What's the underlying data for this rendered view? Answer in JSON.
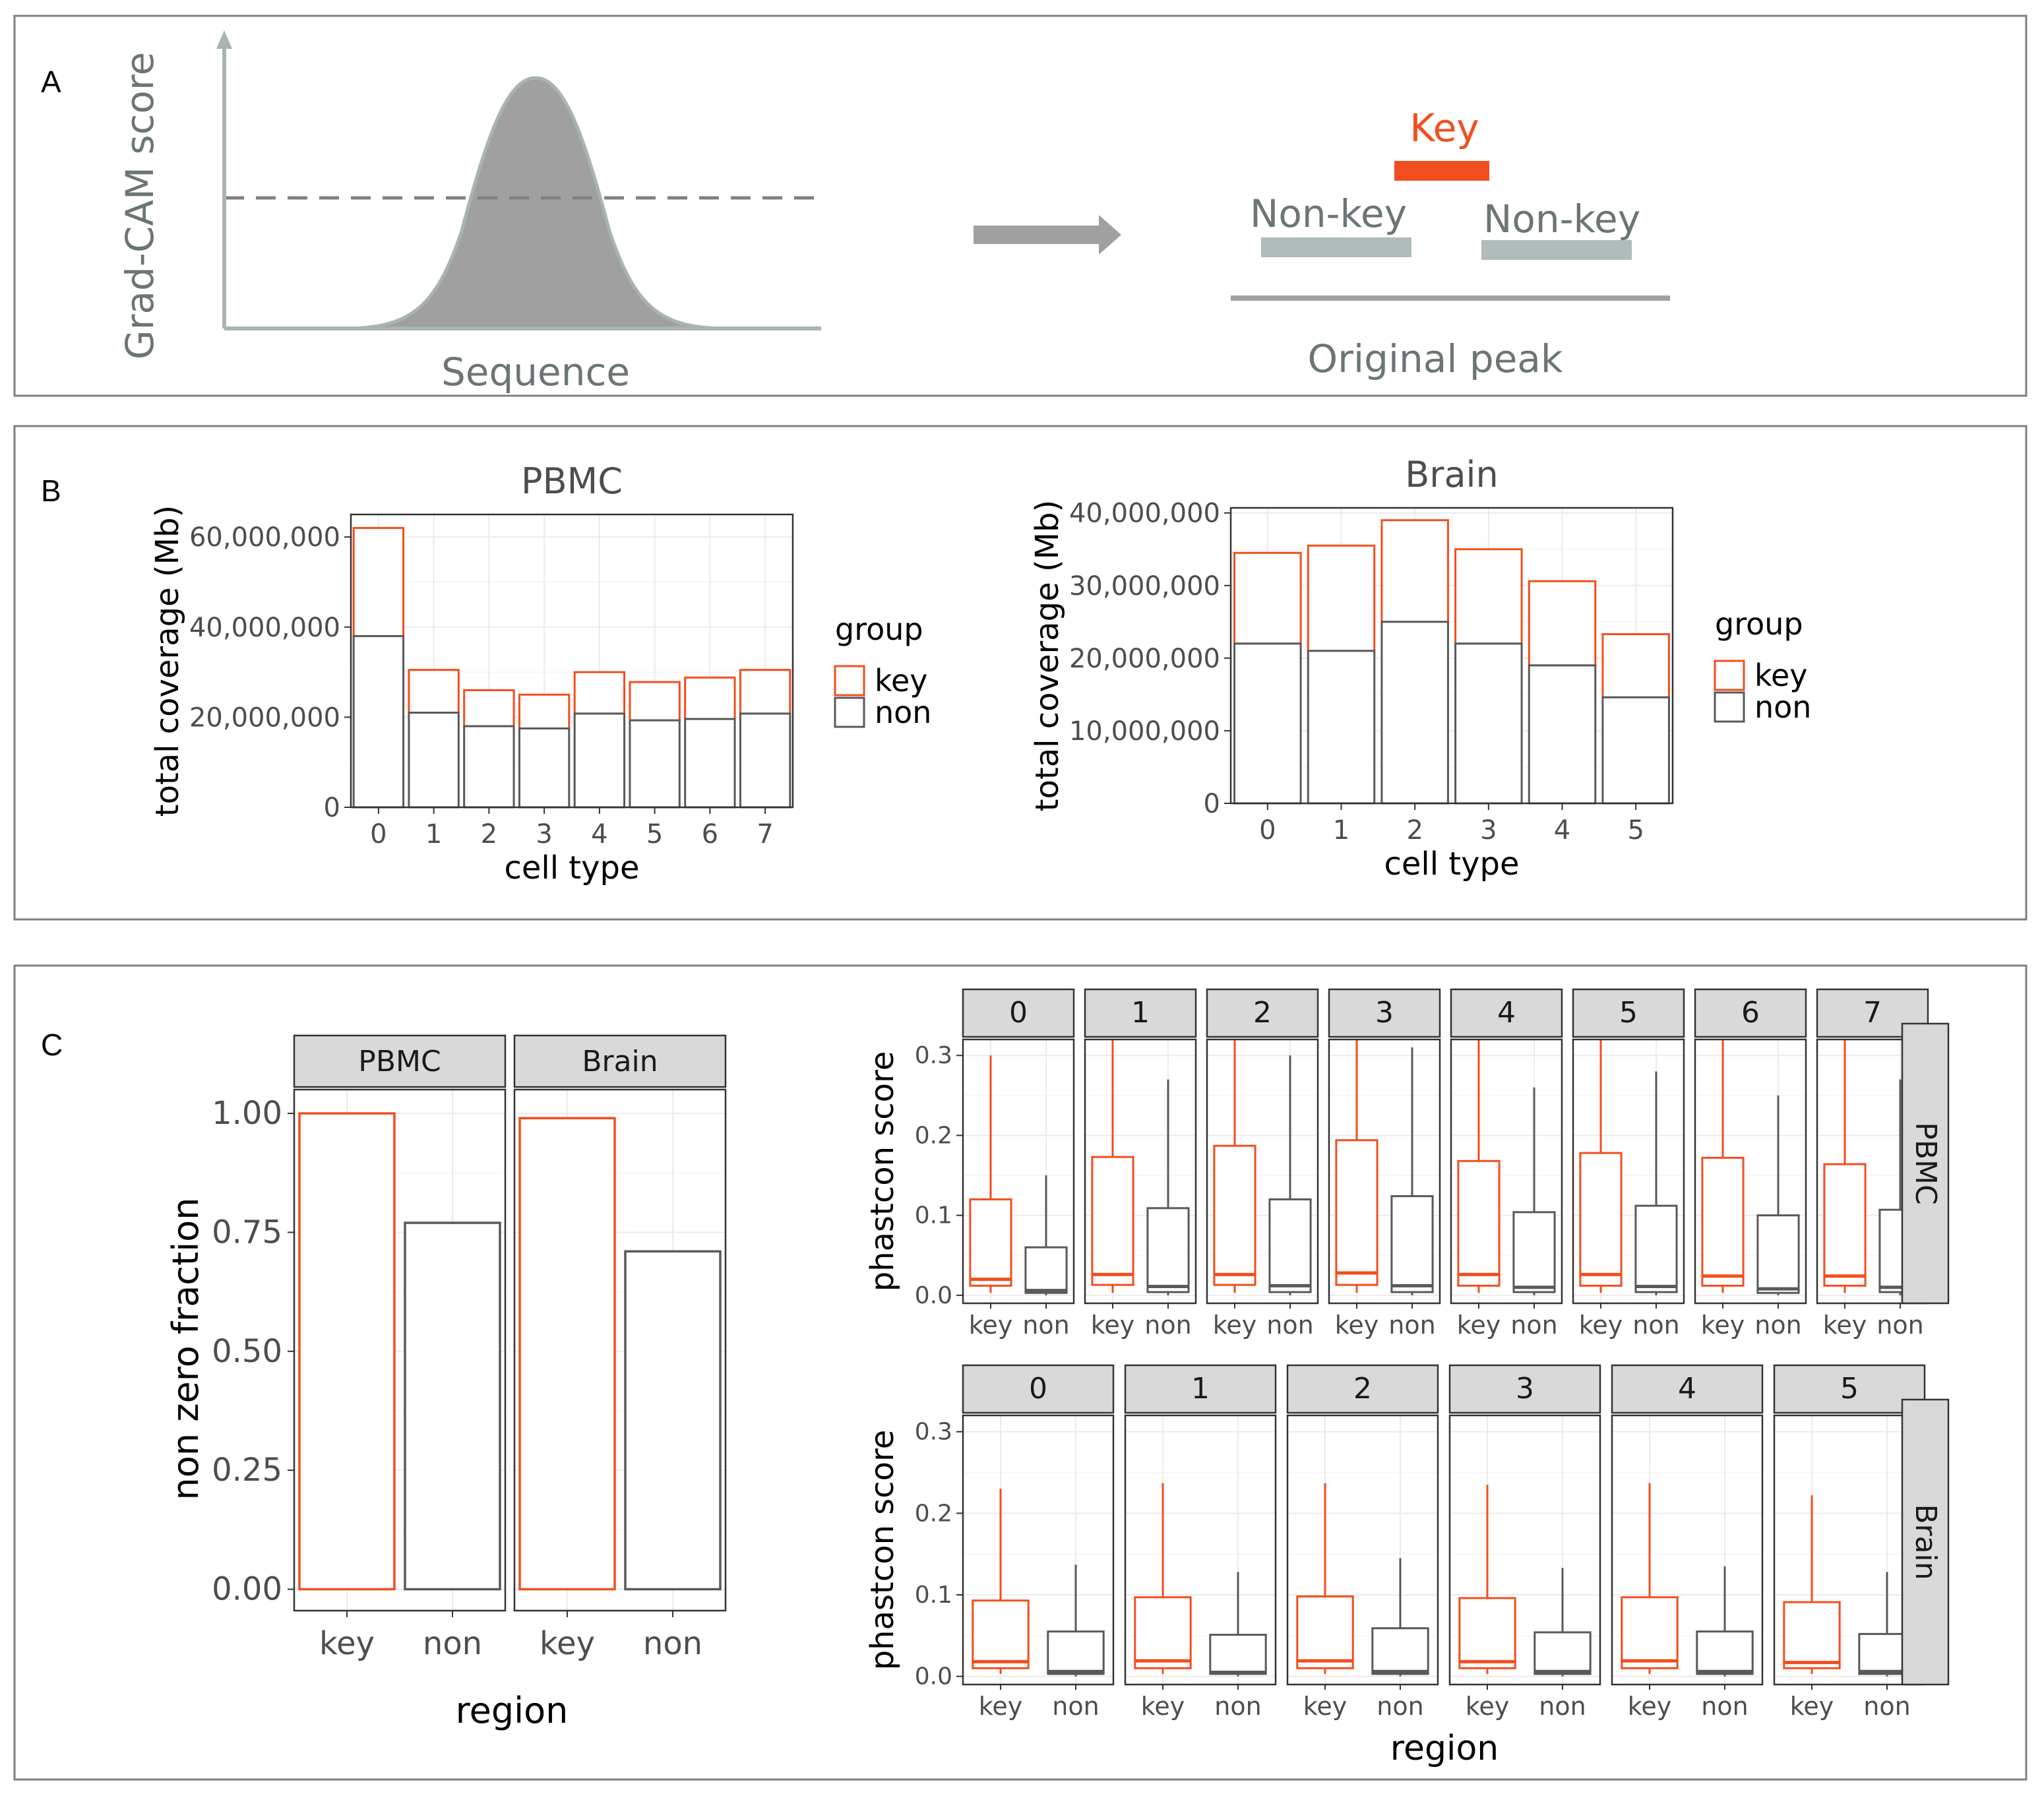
{
  "panels": {
    "A": {
      "label": "A",
      "y_axis_label": "Grad-CAM score",
      "x_axis_label": "Sequence",
      "key_label": "Key",
      "nonkey_left_label": "Non-key",
      "nonkey_right_label": "Non-key",
      "original_label": "Original peak"
    },
    "B": {
      "label": "B"
    },
    "C": {
      "label": "C"
    }
  },
  "colors": {
    "key": "#f24e1e",
    "non": "#595959",
    "schematic_gray": "#a0a0a0",
    "schematic_axis": "#a8b3b3",
    "schematic_bar": "#b0bcbc",
    "schematic_text": "#6b7575",
    "strip_fill": "#d9d9d9",
    "frame": "#7f7f7f"
  },
  "chart_data": [
    {
      "id": "B-PBMC",
      "type": "bar",
      "title": "PBMC",
      "xlabel": "cell type",
      "ylabel": "total coverage (Mb)",
      "categories": [
        "0",
        "1",
        "2",
        "3",
        "4",
        "5",
        "6",
        "7"
      ],
      "ylim": [
        0,
        65000000
      ],
      "yticks": [
        0,
        20000000,
        40000000,
        60000000
      ],
      "ytick_labels": [
        "0",
        "20,000,000",
        "40,000,000",
        "60,000,000"
      ],
      "stacked": true,
      "series": [
        {
          "name": "non",
          "values": [
            38000000,
            21000000,
            18000000,
            17500000,
            20800000,
            19300000,
            19600000,
            20800000
          ]
        },
        {
          "name": "key",
          "values": [
            24000000,
            9500000,
            8000000,
            7500000,
            9200000,
            8500000,
            9200000,
            9700000
          ]
        }
      ],
      "legend": {
        "title": "group",
        "entries": [
          "key",
          "non"
        ],
        "position": "right"
      }
    },
    {
      "id": "B-Brain",
      "type": "bar",
      "title": "Brain",
      "xlabel": "cell type",
      "ylabel": "total coverage (Mb)",
      "categories": [
        "0",
        "1",
        "2",
        "3",
        "4",
        "5"
      ],
      "ylim": [
        0,
        40700000
      ],
      "yticks": [
        0,
        10000000,
        20000000,
        30000000,
        40000000
      ],
      "ytick_labels": [
        "0",
        "10,000,000",
        "20,000,000",
        "30,000,000",
        "40,000,000"
      ],
      "stacked": true,
      "series": [
        {
          "name": "non",
          "values": [
            22000000,
            21000000,
            25000000,
            22000000,
            19000000,
            14600000
          ]
        },
        {
          "name": "key",
          "values": [
            12500000,
            14500000,
            14000000,
            13000000,
            11600000,
            8700000
          ]
        }
      ],
      "legend": {
        "title": "group",
        "entries": [
          "key",
          "non"
        ],
        "position": "right"
      }
    },
    {
      "id": "C-fraction",
      "type": "bar",
      "xlabel": "region",
      "ylabel": "non zero fraction",
      "facets": [
        "PBMC",
        "Brain"
      ],
      "categories": [
        "key",
        "non"
      ],
      "ylim": [
        0,
        1.05
      ],
      "yticks": [
        0,
        0.25,
        0.5,
        0.75,
        1.0
      ],
      "ytick_labels": [
        "0.00",
        "0.25",
        "0.50",
        "0.75",
        "1.00"
      ],
      "values": {
        "PBMC": [
          1.0,
          0.77
        ],
        "Brain": [
          0.99,
          0.71
        ]
      }
    },
    {
      "id": "C-phastcon-PBMC",
      "type": "box",
      "row_label": "PBMC",
      "ylabel": "phastcon score",
      "categories": [
        "key",
        "non"
      ],
      "ylim": [
        -0.01,
        0.32
      ],
      "yticks": [
        0,
        0.1,
        0.2,
        0.3
      ],
      "ytick_labels": [
        "0.0",
        "0.1",
        "0.2",
        "0.3"
      ],
      "facets": [
        {
          "label": "0",
          "key": [
            0.003,
            0.012,
            0.02,
            0.12,
            0.3
          ],
          "non": [
            0.0,
            0.003,
            0.006,
            0.06,
            0.15
          ]
        },
        {
          "label": "1",
          "key": [
            0.003,
            0.013,
            0.026,
            0.173,
            0.32
          ],
          "non": [
            0.0,
            0.004,
            0.011,
            0.109,
            0.27
          ]
        },
        {
          "label": "2",
          "key": [
            0.003,
            0.013,
            0.026,
            0.187,
            0.32
          ],
          "non": [
            0.0,
            0.004,
            0.012,
            0.12,
            0.3
          ]
        },
        {
          "label": "3",
          "key": [
            0.003,
            0.013,
            0.028,
            0.194,
            0.32
          ],
          "non": [
            0.0,
            0.004,
            0.012,
            0.124,
            0.31
          ]
        },
        {
          "label": "4",
          "key": [
            0.003,
            0.012,
            0.026,
            0.168,
            0.32
          ],
          "non": [
            0.0,
            0.004,
            0.01,
            0.104,
            0.26
          ]
        },
        {
          "label": "5",
          "key": [
            0.003,
            0.012,
            0.026,
            0.178,
            0.32
          ],
          "non": [
            0.0,
            0.004,
            0.011,
            0.112,
            0.28
          ]
        },
        {
          "label": "6",
          "key": [
            0.003,
            0.012,
            0.024,
            0.172,
            0.32
          ],
          "non": [
            0.0,
            0.003,
            0.008,
            0.1,
            0.25
          ]
        },
        {
          "label": "7",
          "key": [
            0.003,
            0.012,
            0.024,
            0.164,
            0.32
          ],
          "non": [
            0.0,
            0.004,
            0.01,
            0.107,
            0.27
          ]
        }
      ]
    },
    {
      "id": "C-phastcon-Brain",
      "type": "box",
      "row_label": "Brain",
      "ylabel": "phastcon score",
      "xlabel": "region",
      "categories": [
        "key",
        "non"
      ],
      "ylim": [
        -0.01,
        0.32
      ],
      "yticks": [
        0,
        0.1,
        0.2,
        0.3
      ],
      "ytick_labels": [
        "0.0",
        "0.1",
        "0.2",
        "0.3"
      ],
      "facets": [
        {
          "label": "0",
          "key": [
            0.003,
            0.01,
            0.018,
            0.093,
            0.23
          ],
          "non": [
            0.0,
            0.003,
            0.006,
            0.055,
            0.137
          ]
        },
        {
          "label": "1",
          "key": [
            0.003,
            0.01,
            0.019,
            0.097,
            0.237
          ],
          "non": [
            0.0,
            0.003,
            0.005,
            0.051,
            0.128
          ]
        },
        {
          "label": "2",
          "key": [
            0.003,
            0.01,
            0.019,
            0.098,
            0.237
          ],
          "non": [
            0.0,
            0.003,
            0.006,
            0.059,
            0.145
          ]
        },
        {
          "label": "3",
          "key": [
            0.003,
            0.01,
            0.018,
            0.096,
            0.235
          ],
          "non": [
            0.0,
            0.003,
            0.006,
            0.054,
            0.133
          ]
        },
        {
          "label": "4",
          "key": [
            0.003,
            0.01,
            0.019,
            0.097,
            0.237
          ],
          "non": [
            0.0,
            0.003,
            0.006,
            0.055,
            0.135
          ]
        },
        {
          "label": "5",
          "key": [
            0.003,
            0.01,
            0.017,
            0.091,
            0.222
          ],
          "non": [
            0.0,
            0.003,
            0.006,
            0.052,
            0.128
          ]
        }
      ]
    }
  ]
}
